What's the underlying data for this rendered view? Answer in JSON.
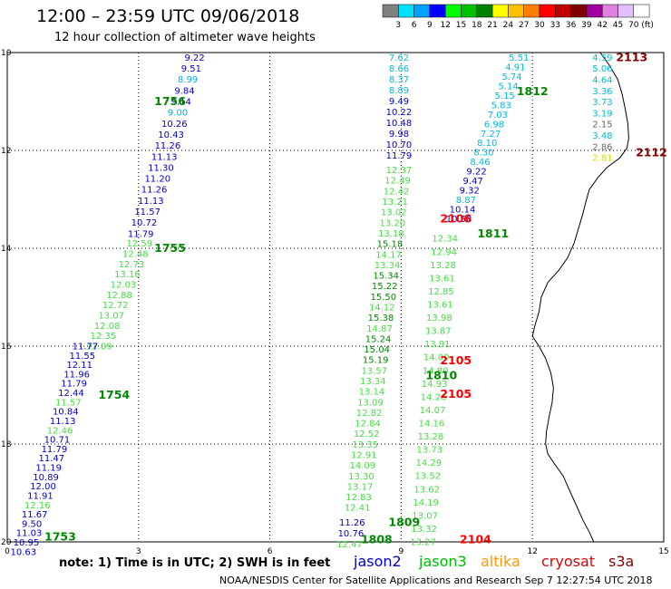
{
  "title": "12:00 – 23:59 UTC 09/06/2018",
  "subtitle": "12 hour collection of altimeter wave heights",
  "scale": {
    "labels": [
      "3",
      "6",
      "9",
      "12",
      "15",
      "18",
      "21",
      "24",
      "27",
      "30",
      "33",
      "36",
      "39",
      "42",
      "45",
      "70"
    ],
    "unit": "(ft)",
    "colors": [
      "#808080",
      "#00e0ff",
      "#00a0ff",
      "#0000ff",
      "#00ff00",
      "#00c000",
      "#008000",
      "#ffff00",
      "#ffc000",
      "#ff8000",
      "#ff0000",
      "#c00000",
      "#800000",
      "#a000a0",
      "#e080e0",
      "#e0c0ff",
      "#ffffff"
    ]
  },
  "y_ticks": [
    "10",
    "12",
    "14",
    "16",
    "18",
    "20"
  ],
  "x_ticks": [
    "0",
    "3",
    "6",
    "9",
    "12",
    "15"
  ],
  "note": "note:  1) Time is in UTC; 2) SWH is in feet",
  "legend": [
    {
      "name": "jason2",
      "color": "#0000cc"
    },
    {
      "name": "jason3",
      "color": "#00bb00"
    },
    {
      "name": "altika",
      "color": "#ff9900"
    },
    {
      "name": "cryosat",
      "color": "#dd0000"
    },
    {
      "name": "s3a",
      "color": "#880000"
    }
  ],
  "footer": "NOAA/NESDIS Center for Satellite Applications and Research    Sep  7 12:27:54 UTC 2018",
  "pass_labels": [
    {
      "text": "1756",
      "color": "#008800",
      "x": 3.72,
      "y": 11.0
    },
    {
      "text": "1755",
      "color": "#008800",
      "x": 3.72,
      "y": 14.0
    },
    {
      "text": "1754",
      "color": "#008800",
      "x": 2.44,
      "y": 17.0
    },
    {
      "text": "1753",
      "color": "#008800",
      "x": 1.21,
      "y": 19.9
    },
    {
      "text": "1812",
      "color": "#008800",
      "x": 12.0,
      "y": 10.8
    },
    {
      "text": "1811",
      "color": "#008800",
      "x": 11.1,
      "y": 13.7
    },
    {
      "text": "1810",
      "color": "#008800",
      "x": 9.92,
      "y": 16.6
    },
    {
      "text": "1809",
      "color": "#008800",
      "x": 9.07,
      "y": 19.6
    },
    {
      "text": "1808",
      "color": "#008800",
      "x": 8.44,
      "y": 19.95
    },
    {
      "text": "2113",
      "color": "#880000",
      "x": 14.27,
      "y": 10.1
    },
    {
      "text": "2112",
      "color": "#880000",
      "x": 14.72,
      "y": 12.05
    },
    {
      "text": "2106",
      "color": "#ff0000",
      "x": 10.25,
      "y": 13.4
    },
    {
      "text": "2105",
      "color": "#ff0000",
      "x": 10.25,
      "y": 16.3
    },
    {
      "text": "2105",
      "color": "#ff0000",
      "x": 10.25,
      "y": 16.98
    },
    {
      "text": "2104",
      "color": "#ff0000",
      "x": 10.7,
      "y": 19.95
    }
  ],
  "tracks": [
    {
      "name": "1756",
      "color": "#0000cc",
      "values": [
        "9.22",
        "9.51",
        "8.99",
        "9.84",
        "9.14",
        "9.00",
        "10.26",
        "10.43",
        "11.26",
        "11.13",
        "11.30",
        "11.20",
        "11.26",
        "11.13",
        "11.57",
        "10.72",
        "11.79"
      ],
      "color_overrides": {
        "2": "#00aaee",
        "5": "#00aaee"
      },
      "x0": 4.28,
      "y0": 10.1,
      "x1": 3.05,
      "y1": 13.7
    },
    {
      "name": "1755",
      "color": "#44dd44",
      "values": [
        "12.59",
        "12.48",
        "12.73",
        "13.16",
        "12.03",
        "12.88",
        "12.72",
        "13.07",
        "12.08",
        "12.35",
        "12.09"
      ],
      "color_overrides": {},
      "x0": 3.02,
      "y0": 13.9,
      "x1": 2.1,
      "y1": 16.0
    },
    {
      "name": "1754",
      "color": "#0000cc",
      "values": [
        "11.77",
        "11.55",
        "12.11",
        "11.96",
        "11.79",
        "12.44",
        "11.57",
        "10.84",
        "11.13",
        "12.46",
        "10.71",
        "11.79",
        "11.47",
        "11.19",
        "10.89",
        "12.00",
        "11.91",
        "12.16",
        "11.67",
        "9.50",
        "11.03",
        "10.95",
        "10.63"
      ],
      "color_overrides": {
        "6": "#44dd44",
        "9": "#44dd44",
        "17": "#44dd44"
      },
      "x0": 1.78,
      "y0": 16.0,
      "x1": 0.37,
      "y1": 20.2
    },
    {
      "name": "1812",
      "color": "#00bbdd",
      "values": [
        "5.51",
        "4.91",
        "5.74",
        "5.14",
        "5.15",
        "5.83",
        "7.03",
        "6.98",
        "7.27",
        "8.10",
        "8.30",
        "8.46",
        "9.22",
        "9.47",
        "9.32",
        "8.87",
        "10.14",
        "10.58"
      ],
      "color_overrides": {
        "12": "#0000cc",
        "13": "#0000cc",
        "14": "#0000cc",
        "15": "#00bbdd",
        "16": "#0000cc",
        "17": "#0000cc"
      },
      "x0": 11.69,
      "y0": 10.1,
      "x1": 10.32,
      "y1": 13.4
    },
    {
      "name": "1811",
      "color": "#44dd44",
      "values": [
        "12.34",
        "12.94",
        "13.28",
        "13.61",
        "12.85",
        "13.61",
        "13.98",
        "13.87",
        "13.91",
        "14.00",
        "14.80",
        "14.93",
        "14.26",
        "14.07",
        "14.16",
        "13.28",
        "13.73",
        "14.29",
        "13.52",
        "13.62",
        "14.19",
        "13.07",
        "13.32",
        "13.27"
      ],
      "color_overrides": {},
      "x0": 10.0,
      "y0": 13.8,
      "x1": 9.5,
      "y1": 20.0
    },
    {
      "name": "1810",
      "color": "#00bbdd",
      "values": [
        "7.62",
        "8.66",
        "8.37",
        "8.89",
        "9.49",
        "10.22",
        "10.48",
        "9.98",
        "10.70",
        "11.79"
      ],
      "color_overrides": {
        "4": "#0000cc",
        "5": "#0000cc",
        "6": "#0000cc",
        "7": "#0000cc",
        "8": "#0000cc",
        "9": "#0000cc"
      },
      "x0": 8.95,
      "y0": 10.1,
      "x1": 8.95,
      "y1": 12.1
    },
    {
      "name": "1809",
      "color": "#44dd44",
      "values": [
        "12.37",
        "12.49",
        "12.42",
        "13.21",
        "13.02",
        "13.20",
        "13.18",
        "15.18",
        "14.17",
        "13.34",
        "15.34",
        "15.22",
        "15.50",
        "14.12",
        "15.38",
        "14.87",
        "15.24",
        "15.04",
        "15.19",
        "13.57",
        "13.34",
        "13.14",
        "13.09",
        "12.82",
        "12.84",
        "12.52",
        "13.35",
        "12.91",
        "14.09",
        "13.30",
        "13.17",
        "12.83",
        "12.41"
      ],
      "color_overrides": {
        "7": "#008800",
        "10": "#008800",
        "11": "#008800",
        "12": "#008800",
        "14": "#008800",
        "16": "#008800",
        "17": "#008800",
        "18": "#008800"
      },
      "x0": 8.95,
      "y0": 12.4,
      "x1": 8.0,
      "y1": 19.3
    },
    {
      "name": "1808",
      "color": "#0000cc",
      "values": [
        "11.26",
        "10.76",
        "12.47"
      ],
      "color_overrides": {
        "2": "#44dd44"
      },
      "x0": 7.88,
      "y0": 19.6,
      "x1": 7.82,
      "y1": 20.05
    },
    {
      "name": "2113",
      "color": "#00bbdd",
      "values": [
        "4.59",
        "5.06",
        "4.64",
        "3.36",
        "3.73",
        "3.19",
        "2.15",
        "3.48",
        "2.86",
        "2.81"
      ],
      "color_overrides": {
        "6": "#666666",
        "8": "#666666",
        "9": "#dddd00"
      },
      "x0": 13.6,
      "y0": 10.1,
      "x1": 13.6,
      "y1": 12.15
    }
  ]
}
